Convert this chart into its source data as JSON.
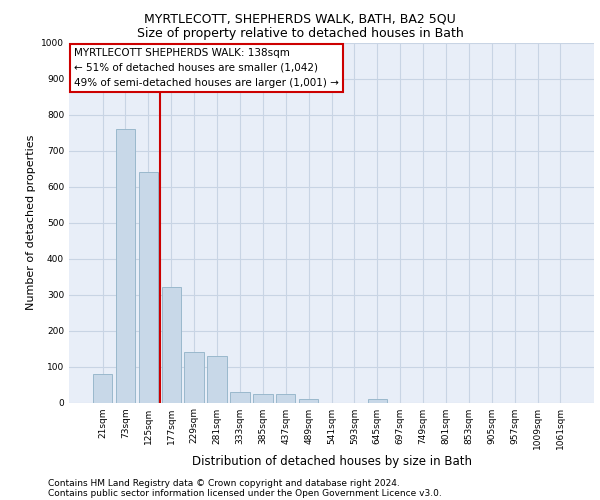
{
  "title_line1": "MYRTLECOTT, SHEPHERDS WALK, BATH, BA2 5QU",
  "title_line2": "Size of property relative to detached houses in Bath",
  "xlabel": "Distribution of detached houses by size in Bath",
  "ylabel": "Number of detached properties",
  "categories": [
    "21sqm",
    "73sqm",
    "125sqm",
    "177sqm",
    "229sqm",
    "281sqm",
    "333sqm",
    "385sqm",
    "437sqm",
    "489sqm",
    "541sqm",
    "593sqm",
    "645sqm",
    "697sqm",
    "749sqm",
    "801sqm",
    "853sqm",
    "905sqm",
    "957sqm",
    "1009sqm",
    "1061sqm"
  ],
  "values": [
    80,
    760,
    640,
    320,
    140,
    130,
    30,
    25,
    25,
    10,
    0,
    0,
    10,
    0,
    0,
    0,
    0,
    0,
    0,
    0,
    0
  ],
  "bar_color": "#c8d8e8",
  "bar_edge_color": "#9ab8cc",
  "vline_x_index": 2.5,
  "vline_color": "#cc0000",
  "annotation_text": "MYRTLECOTT SHEPHERDS WALK: 138sqm\n← 51% of detached houses are smaller (1,042)\n49% of semi-detached houses are larger (1,001) →",
  "annotation_box_color": "#ffffff",
  "annotation_box_edge": "#cc0000",
  "ylim": [
    0,
    1000
  ],
  "grid_color": "#c8d4e4",
  "background_color": "#e8eef8",
  "footnote1": "Contains HM Land Registry data © Crown copyright and database right 2024.",
  "footnote2": "Contains public sector information licensed under the Open Government Licence v3.0.",
  "title1_fontsize": 9,
  "title2_fontsize": 9,
  "footnote_fontsize": 6.5,
  "ylabel_fontsize": 8,
  "xlabel_fontsize": 8.5,
  "tick_fontsize": 6.5,
  "annot_fontsize": 7.5
}
